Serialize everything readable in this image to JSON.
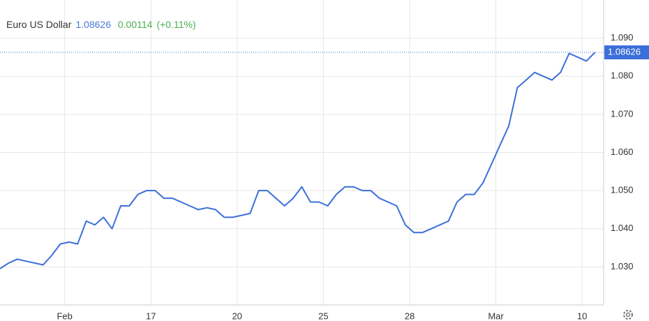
{
  "chart_data": {
    "type": "line",
    "title": "Euro US Dollar",
    "last_price": 1.08626,
    "change": 0.00114,
    "change_pct": "(+0.11%)",
    "color": "#3b6fd9",
    "x": [
      0,
      2,
      4,
      6,
      8,
      10,
      12,
      14,
      16,
      18,
      20,
      22,
      24,
      26,
      28,
      30,
      32,
      34,
      36,
      38,
      40,
      42,
      44,
      46,
      48,
      50,
      52,
      54,
      56,
      58,
      60,
      62,
      64,
      66,
      68,
      70,
      72,
      74,
      76,
      78,
      80,
      82,
      84,
      86,
      88,
      90,
      92,
      94,
      96,
      98,
      100,
      102,
      104,
      106,
      108,
      110,
      112,
      114,
      116,
      118,
      120,
      122,
      124,
      126,
      128,
      130,
      132,
      134,
      136,
      138
    ],
    "values": [
      1.0295,
      1.031,
      1.032,
      1.0315,
      1.031,
      1.0305,
      1.033,
      1.036,
      1.0365,
      1.036,
      1.042,
      1.041,
      1.043,
      1.04,
      1.046,
      1.046,
      1.049,
      1.05,
      1.05,
      1.048,
      1.048,
      1.047,
      1.046,
      1.045,
      1.0455,
      1.045,
      1.043,
      1.043,
      1.0435,
      1.044,
      1.05,
      1.05,
      1.048,
      1.046,
      1.048,
      1.051,
      1.047,
      1.047,
      1.046,
      1.049,
      1.051,
      1.051,
      1.05,
      1.05,
      1.048,
      1.047,
      1.046,
      1.041,
      1.039,
      1.039,
      1.04,
      1.041,
      1.042,
      1.047,
      1.049,
      1.049,
      1.052,
      1.057,
      1.062,
      1.067,
      1.077,
      1.079,
      1.081,
      1.08,
      1.079,
      1.081,
      1.086,
      1.085,
      1.084,
      1.08626
    ],
    "xlim": [
      0,
      140
    ],
    "xticks": [
      {
        "value": 15,
        "label": "Feb"
      },
      {
        "value": 35,
        "label": "17"
      },
      {
        "value": 55,
        "label": "20"
      },
      {
        "value": 75,
        "label": "25"
      },
      {
        "value": 95,
        "label": "28"
      },
      {
        "value": 115,
        "label": "Mar"
      },
      {
        "value": 135,
        "label": "10"
      }
    ],
    "ylim": [
      1.02,
      1.1
    ],
    "yticks": [
      {
        "value": 1.03,
        "label": "1.030"
      },
      {
        "value": 1.04,
        "label": "1.040"
      },
      {
        "value": 1.05,
        "label": "1.050"
      },
      {
        "value": 1.06,
        "label": "1.060"
      },
      {
        "value": 1.07,
        "label": "1.070"
      },
      {
        "value": 1.08,
        "label": "1.080"
      },
      {
        "value": 1.09,
        "label": "1.090"
      }
    ],
    "grid": true
  }
}
